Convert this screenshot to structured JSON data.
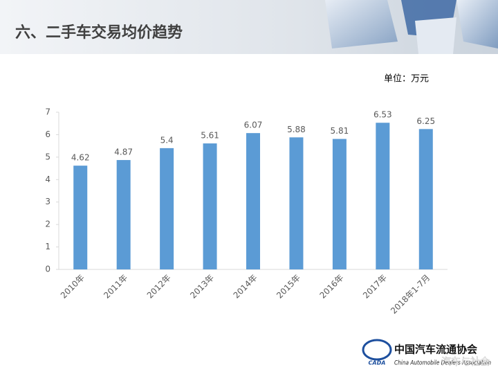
{
  "chart_data": {
    "type": "bar",
    "title": "六、二手车交易均价趋势",
    "y_unit": "单位：万元",
    "categories": [
      "2010年",
      "2011年",
      "2012年",
      "2013年",
      "2014年",
      "2015年",
      "2016年",
      "2017年",
      "2018年1-7月"
    ],
    "values": [
      4.62,
      4.87,
      5.4,
      5.61,
      6.07,
      5.88,
      5.81,
      6.53,
      6.25
    ],
    "color": "#5b9bd5",
    "ylim": [
      0,
      7
    ],
    "yticks": [
      0,
      1,
      2,
      3,
      4,
      5,
      6,
      7
    ],
    "grid": false
  },
  "logo": {
    "abbr": "CADA",
    "name": "中国汽车流通协会",
    "english": "China Automobile Dealers Association"
  },
  "watermark": "汽车与社会"
}
